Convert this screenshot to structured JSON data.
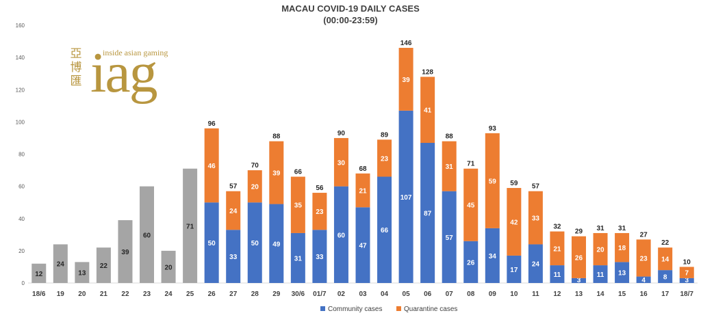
{
  "chart_data": {
    "type": "bar",
    "stacked": true,
    "title": "MACAU COVID-19 DAILY CASES",
    "subtitle": "(00:00-23:59)",
    "categories": [
      "18/6",
      "19",
      "20",
      "21",
      "22",
      "23",
      "24",
      "25",
      "26",
      "27",
      "28",
      "29",
      "30/6",
      "01/7",
      "02",
      "03",
      "04",
      "05",
      "06",
      "07",
      "08",
      "09",
      "10",
      "11",
      "12",
      "13",
      "14",
      "15",
      "16",
      "17",
      "18/7"
    ],
    "ylim": [
      0,
      160
    ],
    "yticks": [
      0,
      20,
      40,
      60,
      80,
      100,
      120,
      140,
      160
    ],
    "grid": false,
    "legend_position": "bottom",
    "series": [
      {
        "name": "",
        "color": "#a5a5a5",
        "values": [
          12,
          24,
          13,
          22,
          39,
          60,
          20,
          71,
          null,
          null,
          null,
          null,
          null,
          null,
          null,
          null,
          null,
          null,
          null,
          null,
          null,
          null,
          null,
          null,
          null,
          null,
          null,
          null,
          null,
          null,
          null
        ]
      },
      {
        "name": "Community cases",
        "color": "#4472c4",
        "values": [
          null,
          null,
          null,
          null,
          null,
          null,
          null,
          null,
          50,
          33,
          50,
          49,
          31,
          33,
          60,
          47,
          66,
          107,
          87,
          57,
          26,
          34,
          17,
          24,
          11,
          3,
          11,
          13,
          4,
          8,
          3
        ]
      },
      {
        "name": "Quarantine cases",
        "color": "#ed7d31",
        "values": [
          null,
          null,
          null,
          null,
          null,
          null,
          null,
          null,
          46,
          24,
          20,
          39,
          35,
          23,
          30,
          21,
          23,
          39,
          41,
          31,
          45,
          59,
          42,
          33,
          21,
          26,
          20,
          18,
          23,
          14,
          7
        ]
      }
    ],
    "totals": [
      null,
      null,
      null,
      null,
      null,
      null,
      null,
      null,
      96,
      57,
      70,
      88,
      66,
      56,
      90,
      68,
      89,
      146,
      128,
      88,
      71,
      93,
      59,
      57,
      32,
      29,
      31,
      31,
      27,
      22,
      10
    ]
  },
  "logo": {
    "brand_text": "iag",
    "tagline": "inside asian gaming",
    "cjk_text": "亞博匯"
  }
}
